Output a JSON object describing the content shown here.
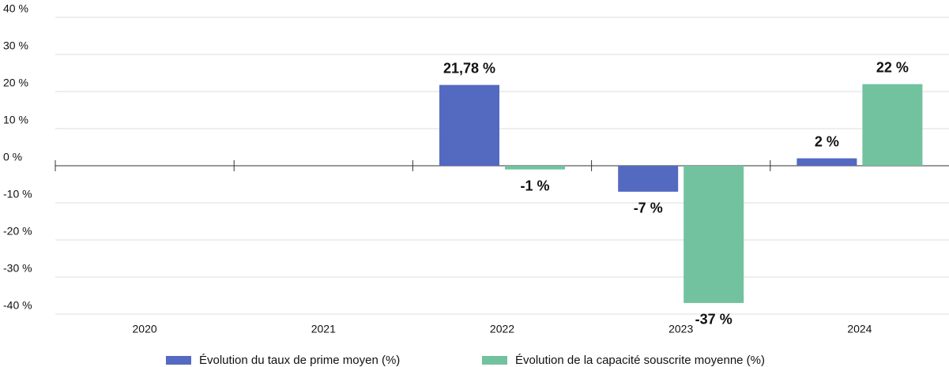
{
  "chart_data": {
    "type": "bar",
    "categories": [
      "2020",
      "2021",
      "2022",
      "2023",
      "2024"
    ],
    "series": [
      {
        "name": "Évolution du taux de prime moyen (%)",
        "color": "#5469c0",
        "values": [
          null,
          null,
          21.78,
          -7,
          2
        ],
        "value_labels": [
          null,
          null,
          "21,78 %",
          "-7 %",
          "2 %"
        ]
      },
      {
        "name": "Évolution de la capacité souscrite moyenne (%)",
        "color": "#72c29f",
        "values": [
          null,
          null,
          -1,
          -37,
          22
        ],
        "value_labels": [
          null,
          null,
          "-1 %",
          "-37 %",
          "22 %"
        ]
      }
    ],
    "ylim": [
      -40,
      40
    ],
    "yticks": [
      {
        "value": 40,
        "label": "40 %"
      },
      {
        "value": 30,
        "label": "30 %"
      },
      {
        "value": 20,
        "label": "20 %"
      },
      {
        "value": 10,
        "label": "10 %"
      },
      {
        "value": 0,
        "label": "0 %"
      },
      {
        "value": -10,
        "label": "-10 %"
      },
      {
        "value": -20,
        "label": "-20 %"
      },
      {
        "value": -30,
        "label": "-30 %"
      },
      {
        "value": -40,
        "label": "-40 %"
      }
    ],
    "grid": true,
    "legend": "bottom"
  }
}
